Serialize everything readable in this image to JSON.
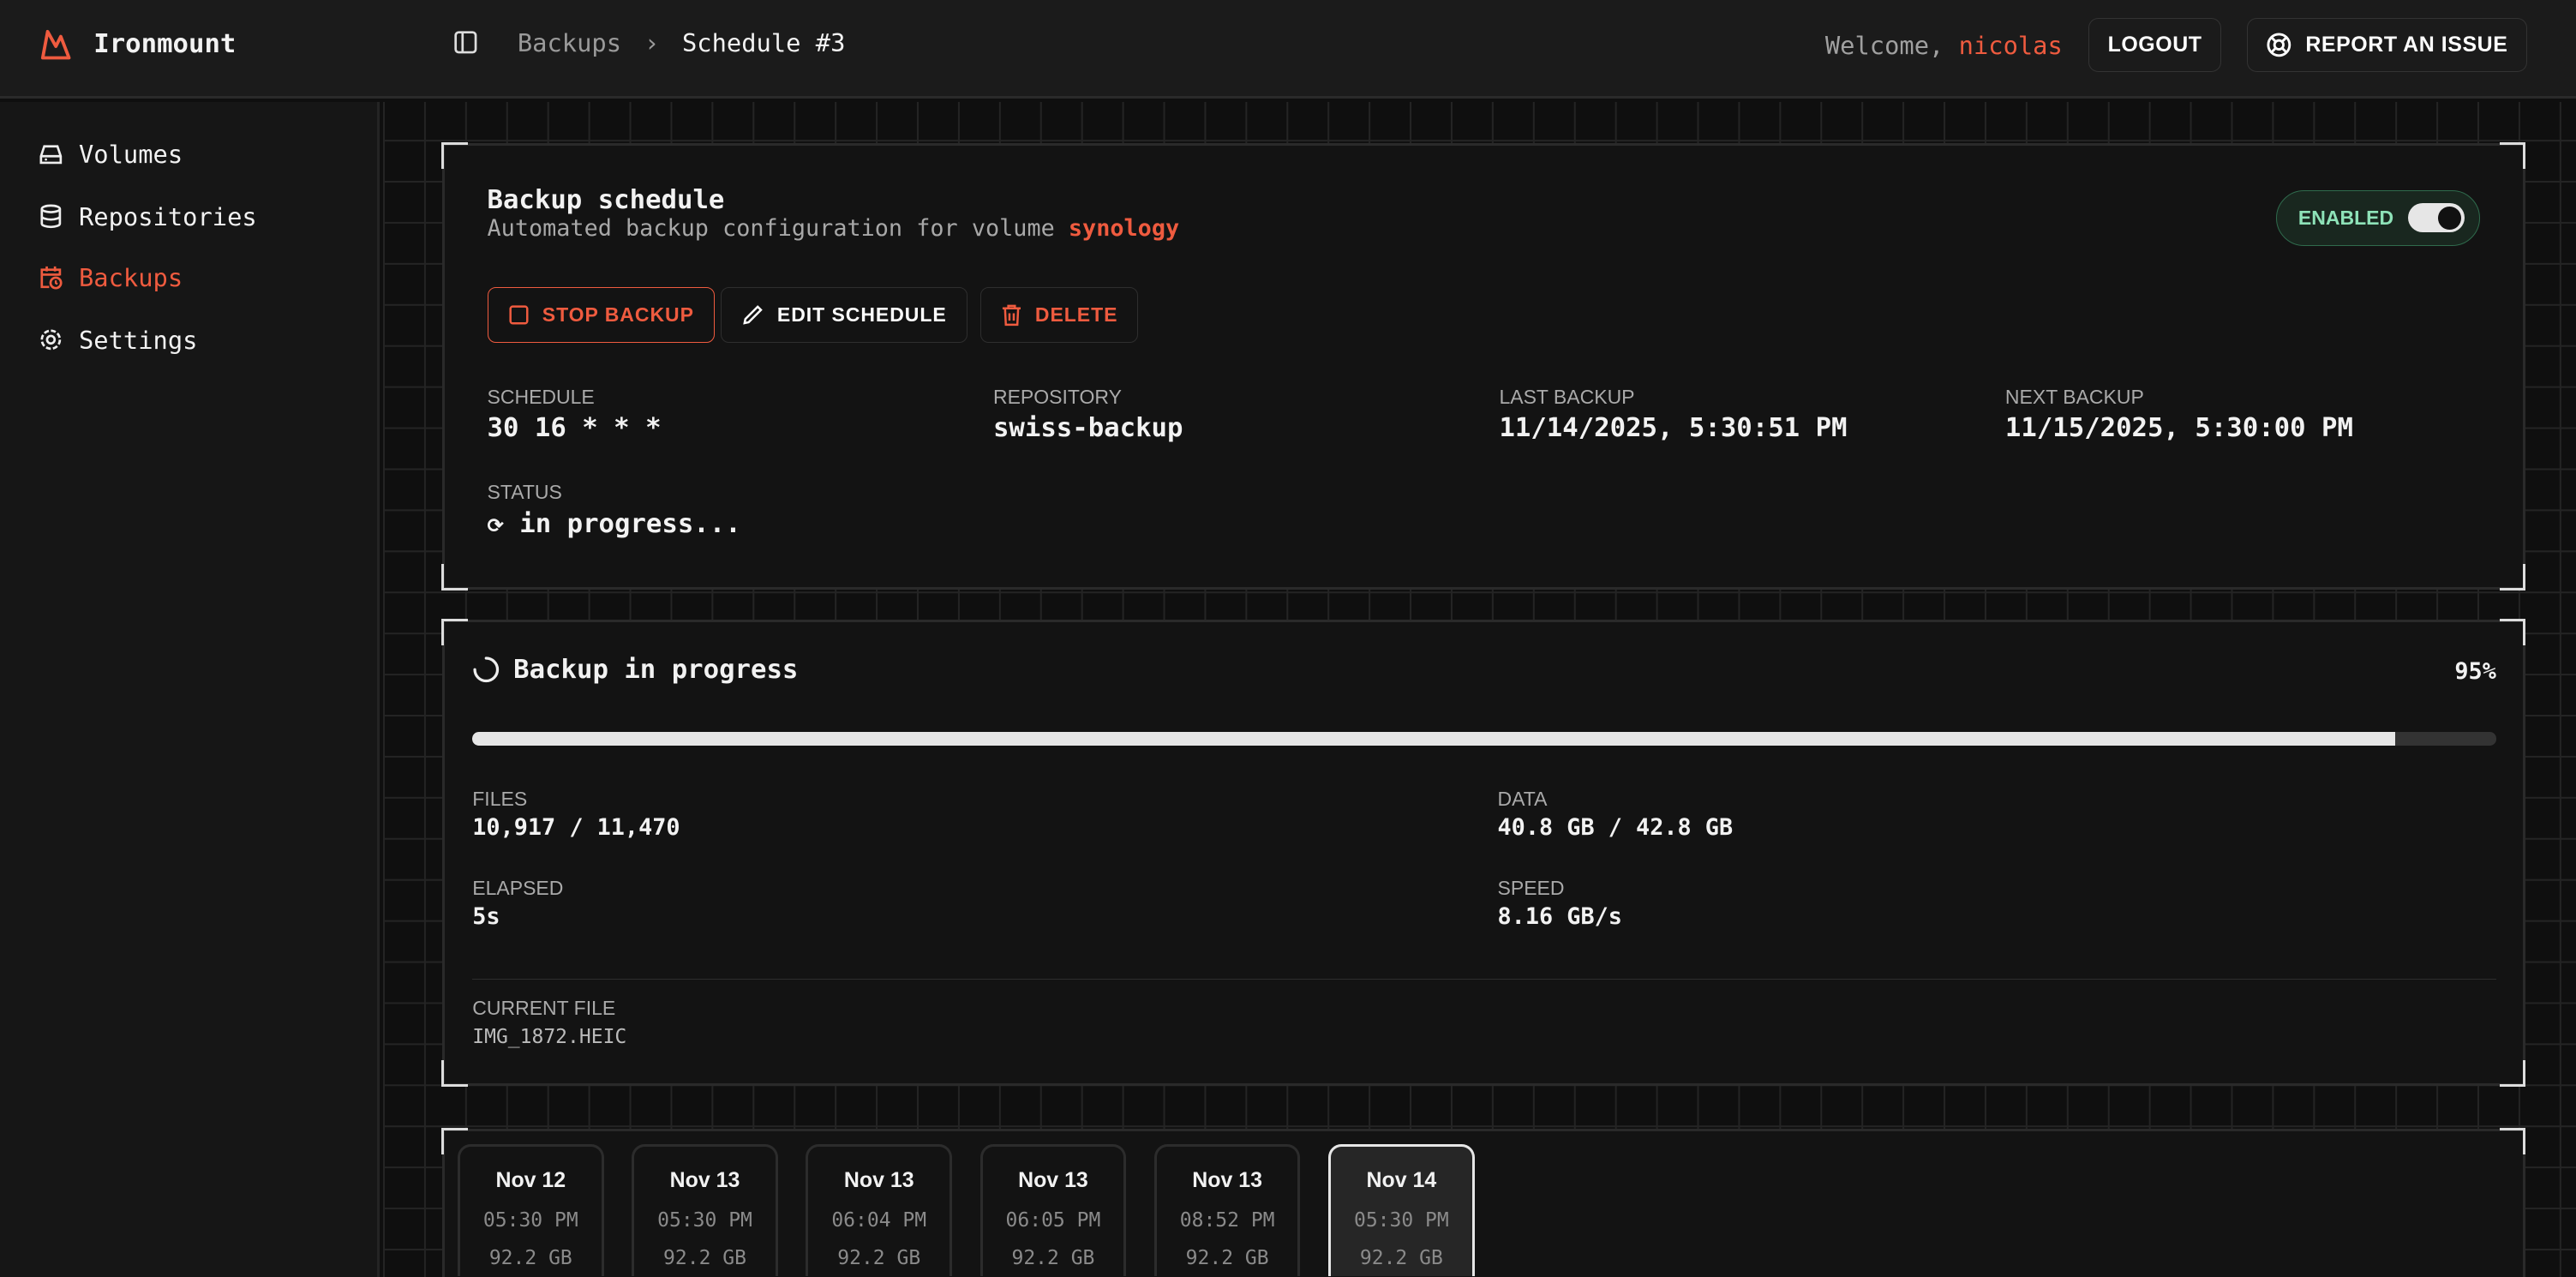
{
  "app": {
    "name": "Ironmount",
    "accent": "#ef5b3f"
  },
  "breadcrumb": [
    "Backups",
    "Schedule #3"
  ],
  "header": {
    "welcome": "Welcome,",
    "user": "nicolas",
    "logout": "LOGOUT",
    "report": "REPORT AN ISSUE"
  },
  "sidebar": {
    "items": [
      {
        "label": "Volumes",
        "icon": "hard-drive-icon"
      },
      {
        "label": "Repositories",
        "icon": "database-icon"
      },
      {
        "label": "Backups",
        "icon": "calendar-clock-icon",
        "active": true
      },
      {
        "label": "Settings",
        "icon": "gear-icon"
      }
    ]
  },
  "schedule": {
    "title": "Backup schedule",
    "subtitle": "Automated backup configuration for volume",
    "volume": "synology",
    "toggle_label": "ENABLED",
    "enabled": true,
    "actions": {
      "stop": "STOP BACKUP",
      "edit": "EDIT SCHEDULE",
      "delete": "DELETE"
    },
    "fields": {
      "schedule_label": "SCHEDULE",
      "schedule": "30 16 * * *",
      "repository_label": "REPOSITORY",
      "repository": "swiss-backup",
      "last_label": "LAST BACKUP",
      "last": "11/14/2025, 5:30:51 PM",
      "next_label": "NEXT BACKUP",
      "next": "11/15/2025, 5:30:00 PM",
      "status_label": "STATUS",
      "status": "in progress..."
    }
  },
  "progress": {
    "title": "Backup in progress",
    "percent_text": "95%",
    "percent": 95,
    "files_label": "FILES",
    "files": "10,917 / 11,470",
    "data_label": "DATA",
    "data": "40.8 GB / 42.8 GB",
    "elapsed_label": "ELAPSED",
    "elapsed": "5s",
    "speed_label": "SPEED",
    "speed": "8.16 GB/s",
    "current_label": "CURRENT FILE",
    "current": "IMG_1872.HEIC"
  },
  "snapshots": [
    {
      "date": "Nov 12",
      "time": "05:30 PM",
      "size": "92.2 GB"
    },
    {
      "date": "Nov 13",
      "time": "05:30 PM",
      "size": "92.2 GB"
    },
    {
      "date": "Nov 13",
      "time": "06:04 PM",
      "size": "92.2 GB"
    },
    {
      "date": "Nov 13",
      "time": "06:05 PM",
      "size": "92.2 GB"
    },
    {
      "date": "Nov 13",
      "time": "08:52 PM",
      "size": "92.2 GB"
    },
    {
      "date": "Nov 14",
      "time": "05:30 PM",
      "size": "92.2 GB",
      "selected": true
    }
  ]
}
